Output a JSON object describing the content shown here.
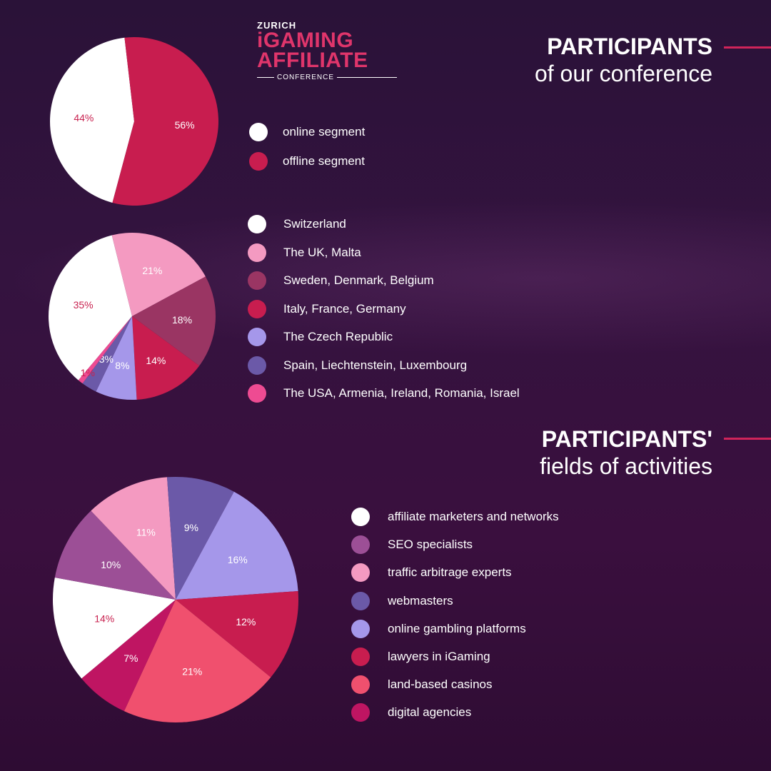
{
  "logo": {
    "city": "ZURICH",
    "line1": "iGAMING",
    "line2": "AFFILIATE",
    "tagline": "CONFERENCE"
  },
  "heading1": {
    "bold": "PARTICIPANTS",
    "sub": "of our conference"
  },
  "heading2": {
    "bold": "PARTICIPANTS'",
    "sub": "fields of activities"
  },
  "colors": {
    "background": "#2f1139",
    "accent": "#d0245a"
  },
  "chart_data": [
    {
      "type": "pie",
      "title": "",
      "slices": [
        {
          "label": "online segment",
          "value": 44,
          "color": "#ffffff",
          "label_color": "#c8214f"
        },
        {
          "label": "offline segment",
          "value": 56,
          "color": "#c81d4f",
          "label_color": "#ffffff"
        }
      ]
    },
    {
      "type": "pie",
      "title": "",
      "slices": [
        {
          "label": "Switzerland",
          "value": 35,
          "color": "#ffffff",
          "label_color": "#c8214f"
        },
        {
          "label": "The UK, Malta",
          "value": 21,
          "color": "#f49ac1",
          "label_color": "#ffffff"
        },
        {
          "label": "Sweden, Denmark, Belgium",
          "value": 18,
          "color": "#9a3563",
          "label_color": "#ffffff"
        },
        {
          "label": "Italy, France, Germany",
          "value": 14,
          "color": "#c81d4f",
          "label_color": "#ffffff"
        },
        {
          "label": "The Czech Republic",
          "value": 8,
          "color": "#a597ea",
          "label_color": "#ffffff"
        },
        {
          "label": "Spain, Liechtenstein, Luxembourg",
          "value": 3,
          "color": "#6b59a8",
          "label_color": "#ffffff"
        },
        {
          "label": "The USA, Armenia, Ireland, Romania, Israel",
          "value": 1,
          "color": "#ee4b92",
          "label_color": "#c8214f"
        }
      ]
    },
    {
      "type": "pie",
      "title": "",
      "slices": [
        {
          "label": "affiliate marketers and networks",
          "value": 14,
          "color": "#ffffff",
          "label_color": "#c8214f"
        },
        {
          "label": "SEO specialists",
          "value": 10,
          "color": "#9c4f96",
          "label_color": "#ffffff"
        },
        {
          "label": "traffic arbitrage experts",
          "value": 11,
          "color": "#f49ac1",
          "label_color": "#ffffff"
        },
        {
          "label": "webmasters",
          "value": 9,
          "color": "#6b59a8",
          "label_color": "#ffffff"
        },
        {
          "label": "online gambling platforms",
          "value": 16,
          "color": "#a597ea",
          "label_color": "#ffffff"
        },
        {
          "label": "lawyers in iGaming",
          "value": 12,
          "color": "#c81d4f",
          "label_color": "#ffffff"
        },
        {
          "label": "land-based casinos",
          "value": 21,
          "color": "#f0506e",
          "label_color": "#ffffff"
        },
        {
          "label": "digital agencies",
          "value": 7,
          "color": "#bf1562",
          "label_color": "#ffffff"
        }
      ]
    }
  ]
}
